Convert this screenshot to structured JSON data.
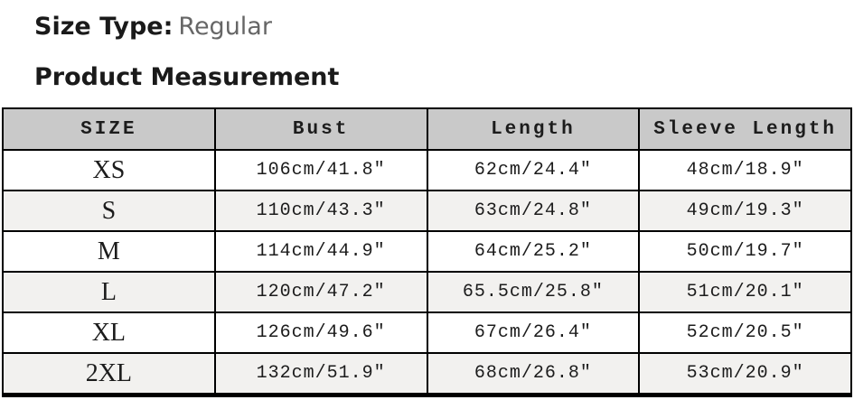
{
  "page": {
    "size_type_label": "Size Type:",
    "size_type_value": "Regular",
    "section_title": "Product Measurement"
  },
  "table": {
    "columns": [
      "SIZE",
      "Bust",
      "Length",
      "Sleeve Length"
    ],
    "rows": [
      {
        "size": "XS",
        "bust": "106cm/41.8″",
        "length": "62cm/24.4″",
        "sleeve_length": "48cm/18.9″"
      },
      {
        "size": "S",
        "bust": "110cm/43.3″",
        "length": "63cm/24.8″",
        "sleeve_length": "49cm/19.3″"
      },
      {
        "size": "M",
        "bust": "114cm/44.9″",
        "length": "64cm/25.2″",
        "sleeve_length": "50cm/19.7″"
      },
      {
        "size": "L",
        "bust": "120cm/47.2″",
        "length": "65.5cm/25.8″",
        "sleeve_length": "51cm/20.1″"
      },
      {
        "size": "XL",
        "bust": "126cm/49.6″",
        "length": "67cm/26.4″",
        "sleeve_length": "52cm/20.5″"
      },
      {
        "size": "2XL",
        "bust": "132cm/51.9″",
        "length": "68cm/26.8″",
        "sleeve_length": "53cm/20.9″"
      }
    ]
  },
  "colors": {
    "header_bg": "#c9c9c9",
    "row_alt_bg": "#f2f1ef",
    "border": "#000000",
    "muted_text": "#666666"
  }
}
